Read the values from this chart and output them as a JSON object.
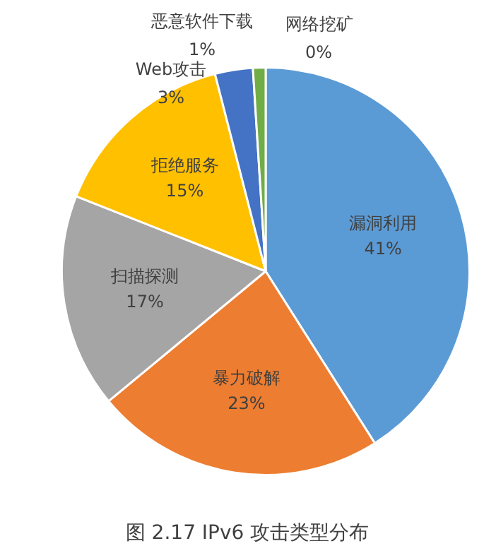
{
  "chart_data": {
    "type": "pie",
    "title": "图 2.17 IPv6 攻击类型分布",
    "categories": [
      "漏洞利用",
      "暴力破解",
      "扫描探测",
      "拒绝服务",
      "Web攻击",
      "恶意软件下载",
      "网络挖矿"
    ],
    "values": [
      41,
      23,
      17,
      15,
      3,
      1,
      0
    ],
    "value_labels": [
      "41%",
      "23%",
      "17%",
      "15%",
      "3%",
      "1%",
      "0%"
    ],
    "colors": [
      "#5b9bd5",
      "#ed7d31",
      "#a5a5a5",
      "#ffc000",
      "#4472c4",
      "#70ad47",
      "#255e91"
    ],
    "legend": false
  }
}
